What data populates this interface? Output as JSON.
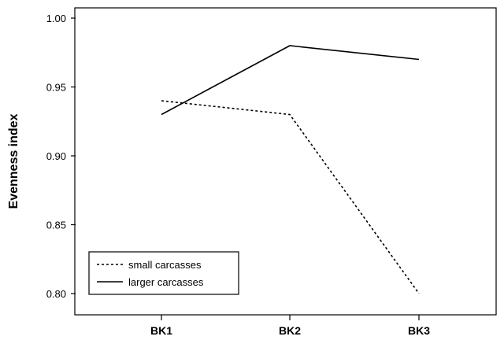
{
  "chart_data": {
    "type": "line",
    "categories": [
      "BK1",
      "BK2",
      "BK3"
    ],
    "series": [
      {
        "name": "small carcasses",
        "values": [
          0.94,
          0.93,
          0.8
        ],
        "line_style": "dashed",
        "color": "#000000"
      },
      {
        "name": "larger carcasses",
        "values": [
          0.93,
          0.98,
          0.97
        ],
        "line_style": "solid",
        "color": "#000000"
      }
    ],
    "xlabel": "",
    "ylabel": "Evenness index",
    "ylim": [
      0.795,
      1.012
    ],
    "yticks": [
      "0.80",
      "0.85",
      "0.90",
      "0.95",
      "1.00"
    ],
    "grid": false,
    "legend_position": "bottom-left"
  }
}
